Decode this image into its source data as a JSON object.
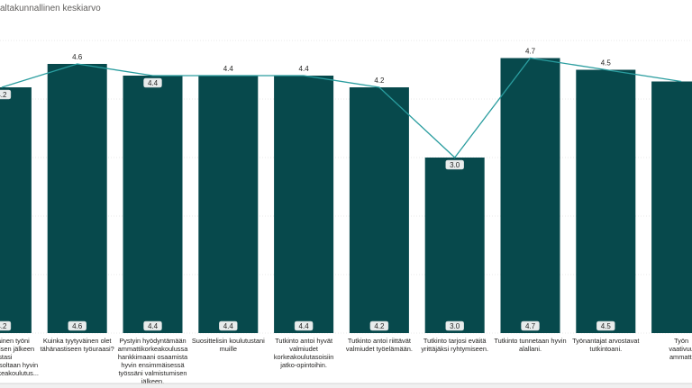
{
  "legend": {
    "label": "altakunnallinen keskiarvo"
  },
  "colors": {
    "bar": "#07494c",
    "line": "#2a9d9f",
    "label_bg": "#e8ecec",
    "grid": "#e9e9e9"
  },
  "chart_data": {
    "type": "bar",
    "title": "",
    "xlabel": "",
    "ylabel": "",
    "ylim": [
      0,
      5
    ],
    "grid": true,
    "categories": [
      [
        "ensimmäinen työni",
        "valmistumisen jälkeen",
        "vastasi",
        "vaativuustasoltaan hyvin",
        "ammattikorkeakoulutus..."
      ],
      [
        "Kuinka tyytyväinen olet",
        "tähänastiseen työuraasi?"
      ],
      [
        "Pystyin hyödyntämään",
        "ammattikorkeakoulussa",
        "hankkimaani osaamista",
        "hyvin ensimmäisessä",
        "työssäni valmistumisen",
        "jälkeen."
      ],
      [
        "Suosittelisin koulutustani",
        "muille"
      ],
      [
        "Tutkinto antoi hyvät",
        "valmiudet",
        "korkeakoulutasoisiin",
        "jatko-opintoihin."
      ],
      [
        "Tutkinto antoi riittävät",
        "valmiudet työelämään."
      ],
      [
        "Tutkinto tarjosi eväitä",
        "yrittäjäksi ryhtymiseen."
      ],
      [
        "Tutkinto tunnetaan hyvin",
        "alallani."
      ],
      [
        "Työnantajat arvostavat",
        "tutkintoani."
      ],
      [
        "Työn",
        "vaativuu",
        "ammatti"
      ]
    ],
    "series": [
      {
        "type": "bar",
        "values": [
          4.2,
          4.6,
          4.4,
          4.4,
          4.4,
          4.2,
          3.0,
          4.7,
          4.5,
          4.3
        ],
        "value_labels": [
          "4.2",
          "4.6",
          "4.4",
          "4.4",
          "4.4",
          "4.2",
          "3.0",
          "4.7",
          "4.5",
          ""
        ],
        "top_labels": [
          "",
          "4.6",
          "",
          "4.4",
          "4.4",
          "4.2",
          "",
          "4.7",
          "4.5",
          ""
        ]
      },
      {
        "name": "altakunnallinen keskiarvo",
        "type": "line",
        "values": [
          4.2,
          4.6,
          4.4,
          4.4,
          4.4,
          4.2,
          3.0,
          4.7,
          4.5,
          4.3
        ],
        "point_labels": [
          "4.2",
          "",
          "4.4",
          "",
          "",
          "",
          "3.0",
          "",
          "",
          ""
        ]
      }
    ]
  }
}
